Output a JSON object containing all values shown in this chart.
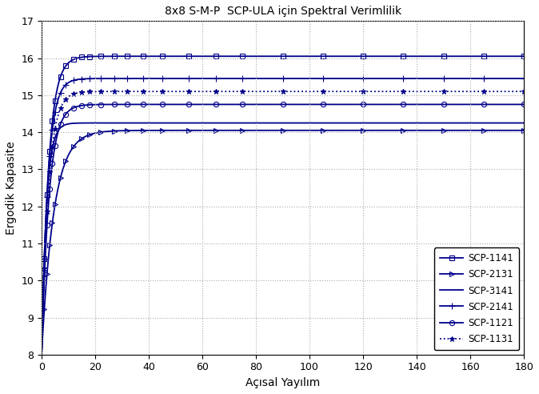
{
  "title": "8x8 S-M-P  SCP-ULA için Spektral Verimlilik",
  "xlabel": "Açısal Yayılım",
  "ylabel": "Ergodik Kapasite",
  "xlim": [
    0,
    180
  ],
  "ylim": [
    8,
    17
  ],
  "xticks": [
    0,
    20,
    40,
    60,
    80,
    100,
    120,
    140,
    160,
    180
  ],
  "yticks": [
    8,
    9,
    10,
    11,
    12,
    13,
    14,
    15,
    16,
    17
  ],
  "color": "#00008B",
  "series": [
    {
      "label": "SCP-1141",
      "marker": "s",
      "linestyle": "-",
      "y0": 8.05,
      "end": 16.05,
      "rate": 0.38,
      "mfc": "none",
      "ms": 4.5
    },
    {
      "label": "SCP-2131",
      "marker": ">",
      "linestyle": "-",
      "y0": 8.05,
      "end": 14.05,
      "rate": 0.22,
      "mfc": "none",
      "ms": 4.5
    },
    {
      "label": "SCP-3141",
      "marker": "",
      "linestyle": "-",
      "y0": 8.05,
      "end": 14.25,
      "rate": 0.55,
      "mfc": "none",
      "ms": 4.5
    },
    {
      "label": "SCP-2141",
      "marker": "+",
      "linestyle": "-",
      "y0": 8.05,
      "end": 15.45,
      "rate": 0.42,
      "mfc": "#00008B",
      "ms": 6
    },
    {
      "label": "SCP-1121",
      "marker": "o",
      "linestyle": "-",
      "y0": 8.05,
      "end": 14.75,
      "rate": 0.36,
      "mfc": "none",
      "ms": 4.5
    },
    {
      "label": "SCP-1131",
      "marker": "*",
      "linestyle": ":",
      "y0": 8.05,
      "end": 15.1,
      "rate": 0.39,
      "mfc": "#00008B",
      "ms": 5
    }
  ]
}
